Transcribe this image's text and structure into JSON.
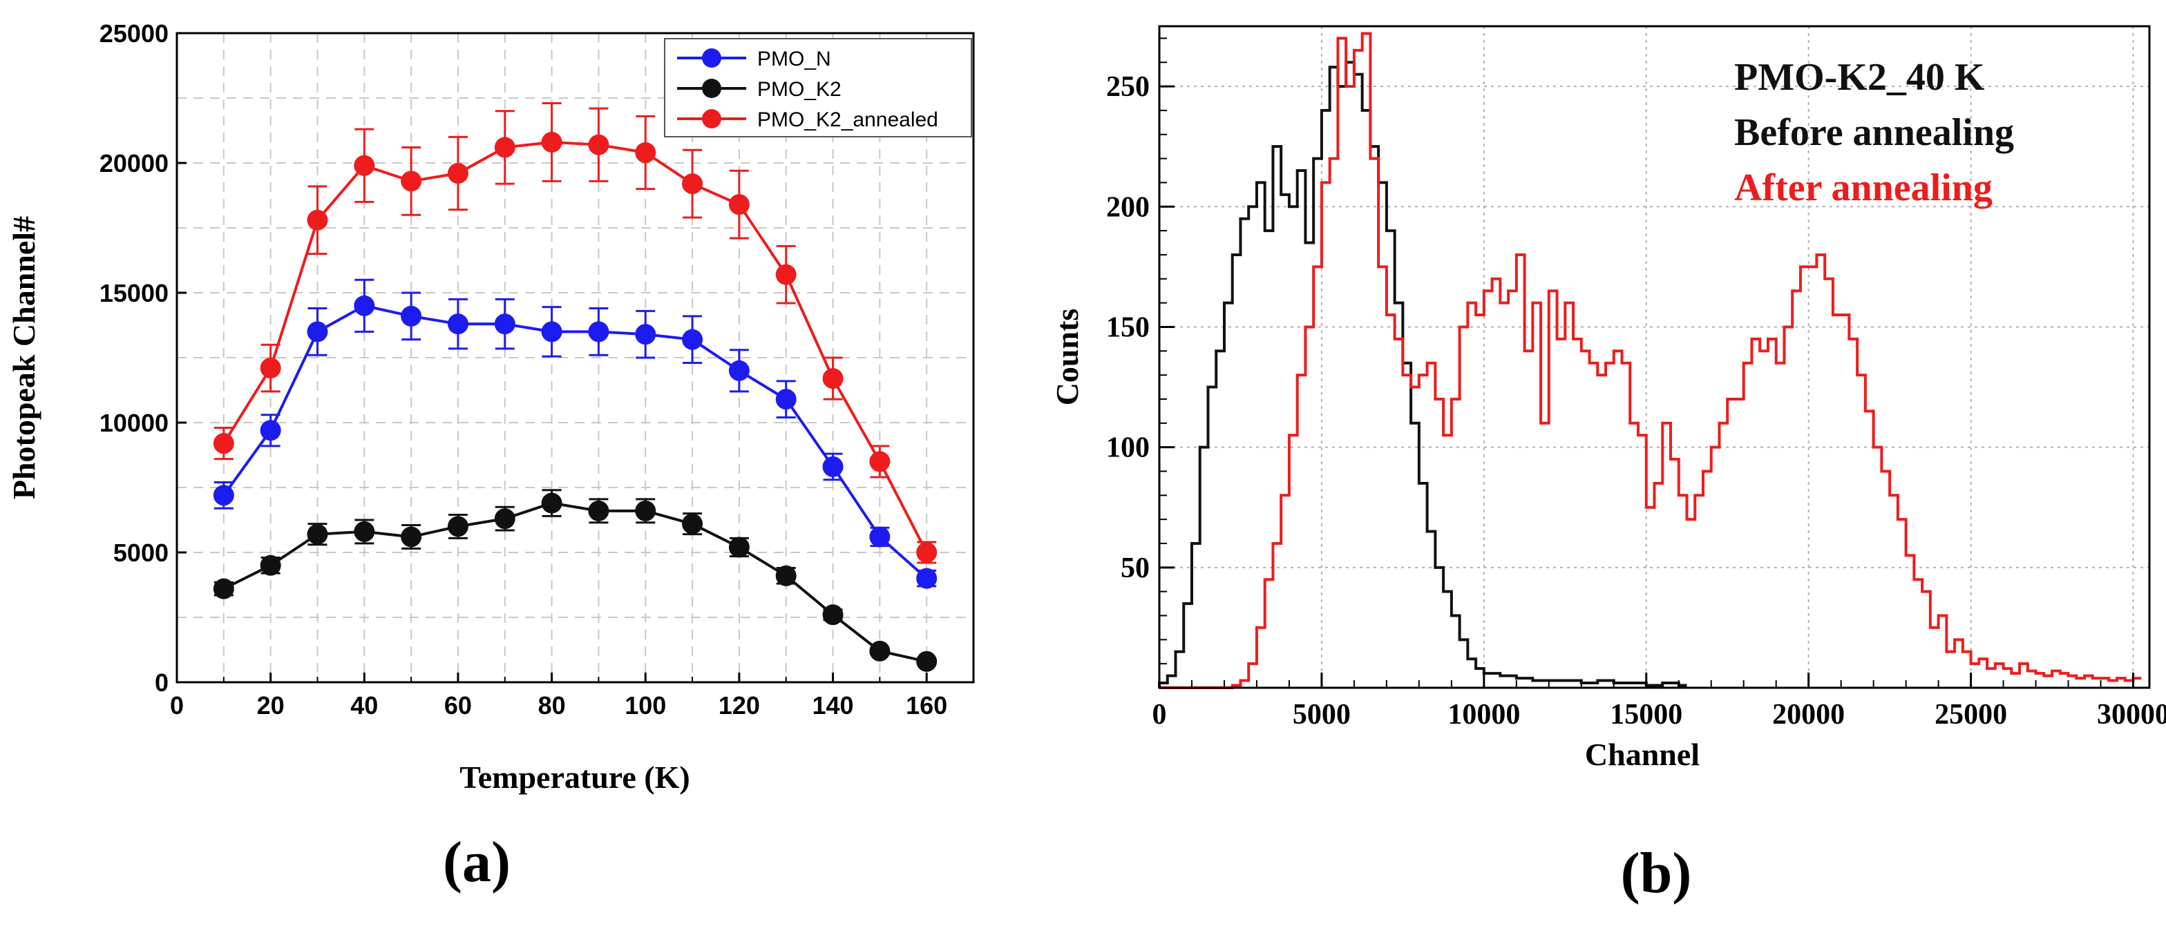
{
  "chart_data": [
    {
      "type": "line",
      "panel_label": "(a)",
      "xlabel": "Temperature (K)",
      "ylabel": "Photopeak Channel#",
      "xlim": [
        0,
        170
      ],
      "ylim": [
        0,
        25000
      ],
      "xticks": [
        0,
        20,
        40,
        60,
        80,
        100,
        120,
        140,
        160
      ],
      "yticks": [
        0,
        5000,
        10000,
        15000,
        20000,
        25000
      ],
      "grid": true,
      "legend": "top-right",
      "x": [
        10,
        20,
        30,
        40,
        50,
        60,
        70,
        80,
        90,
        100,
        110,
        120,
        130,
        140,
        150,
        160
      ],
      "series": [
        {
          "name": "PMO_N",
          "color": "#1c1cf0",
          "values": [
            7200,
            9700,
            13500,
            14500,
            14100,
            13800,
            13800,
            13500,
            13500,
            13400,
            13200,
            12000,
            10900,
            8300,
            5600,
            4000
          ],
          "errors": [
            500,
            600,
            900,
            1000,
            900,
            950,
            950,
            950,
            900,
            900,
            900,
            800,
            700,
            500,
            350,
            300
          ]
        },
        {
          "name": "PMO_K2",
          "color": "#111111",
          "values": [
            3600,
            4500,
            5700,
            5800,
            5600,
            6000,
            6300,
            6900,
            6600,
            6600,
            6100,
            5200,
            4100,
            2600,
            1200,
            800
          ],
          "errors": [
            250,
            300,
            400,
            450,
            450,
            450,
            450,
            500,
            450,
            450,
            400,
            350,
            300,
            200,
            120,
            100
          ]
        },
        {
          "name": "PMO_K2_annealed",
          "color": "#ee1c1c",
          "values": [
            9200,
            12100,
            17800,
            19900,
            19300,
            19600,
            20600,
            20800,
            20700,
            20400,
            19200,
            18400,
            15700,
            11700,
            8500,
            5000
          ],
          "errors": [
            600,
            900,
            1300,
            1400,
            1300,
            1400,
            1400,
            1500,
            1400,
            1400,
            1300,
            1300,
            1100,
            800,
            600,
            400
          ]
        }
      ]
    },
    {
      "type": "histogram",
      "panel_label": "(b)",
      "xlabel": "Channel",
      "ylabel": "Counts",
      "xlim": [
        0,
        30500
      ],
      "ylim": [
        0,
        275
      ],
      "xticks": [
        0,
        5000,
        10000,
        15000,
        20000,
        25000,
        30000
      ],
      "yticks": [
        50,
        100,
        150,
        200,
        250
      ],
      "grid": true,
      "annotations": [
        {
          "text": "PMO-K2_40 K",
          "color": "#111111"
        },
        {
          "text": "Before annealing",
          "color": "#111111"
        },
        {
          "text": "After annealing",
          "color": "#ee1c1c"
        }
      ],
      "series": [
        {
          "name": "Before annealing",
          "color": "#111111",
          "bin_width": 250,
          "x": [
            0,
            250,
            500,
            750,
            1000,
            1250,
            1500,
            1750,
            2000,
            2250,
            2500,
            2750,
            3000,
            3250,
            3500,
            3750,
            4000,
            4250,
            4500,
            4750,
            5000,
            5250,
            5500,
            5750,
            6000,
            6250,
            6500,
            6750,
            7000,
            7250,
            7500,
            7750,
            8000,
            8250,
            8500,
            8750,
            9000,
            9250,
            9500,
            9750,
            10000,
            10500,
            11000,
            11500,
            12000,
            12500,
            13000,
            13500,
            14000,
            14500,
            15000,
            15500,
            16000
          ],
          "values": [
            2,
            5,
            15,
            35,
            60,
            100,
            125,
            140,
            160,
            180,
            195,
            200,
            210,
            190,
            225,
            205,
            200,
            215,
            185,
            220,
            240,
            258,
            250,
            260,
            255,
            240,
            225,
            210,
            190,
            160,
            135,
            110,
            85,
            65,
            50,
            40,
            30,
            20,
            12,
            8,
            6,
            5,
            4,
            3,
            3,
            3,
            2,
            3,
            2,
            2,
            1,
            2,
            1
          ]
        },
        {
          "name": "After annealing",
          "color": "#ee1c1c",
          "bin_width": 250,
          "x": [
            0,
            250,
            500,
            750,
            1000,
            1250,
            1500,
            1750,
            2000,
            2250,
            2500,
            2750,
            3000,
            3250,
            3500,
            3750,
            4000,
            4250,
            4500,
            4750,
            5000,
            5250,
            5500,
            5750,
            6000,
            6250,
            6500,
            6750,
            7000,
            7250,
            7500,
            7750,
            8000,
            8250,
            8500,
            8750,
            9000,
            9250,
            9500,
            9750,
            10000,
            10250,
            10500,
            10750,
            11000,
            11250,
            11500,
            11750,
            12000,
            12250,
            12500,
            12750,
            13000,
            13250,
            13500,
            13750,
            14000,
            14250,
            14500,
            14750,
            15000,
            15250,
            15500,
            15750,
            16000,
            16250,
            16500,
            16750,
            17000,
            17250,
            17500,
            17750,
            18000,
            18250,
            18500,
            18750,
            19000,
            19250,
            19500,
            19750,
            20000,
            20250,
            20500,
            20750,
            21000,
            21250,
            21500,
            21750,
            22000,
            22250,
            22500,
            22750,
            23000,
            23250,
            23500,
            23750,
            24000,
            24250,
            24500,
            24750,
            25000,
            25250,
            25500,
            25750,
            26000,
            26250,
            26500,
            26750,
            27000,
            27250,
            27500,
            27750,
            28000,
            28250,
            28500,
            28750,
            29000,
            29250,
            29500,
            29750,
            30000
          ],
          "values": [
            0,
            0,
            0,
            0,
            0,
            0,
            0,
            0,
            0,
            1,
            3,
            10,
            25,
            45,
            60,
            80,
            105,
            130,
            150,
            175,
            210,
            220,
            270,
            250,
            265,
            272,
            220,
            175,
            155,
            145,
            130,
            125,
            130,
            135,
            120,
            105,
            120,
            150,
            160,
            155,
            165,
            170,
            160,
            165,
            180,
            140,
            160,
            110,
            165,
            145,
            160,
            145,
            140,
            135,
            130,
            135,
            140,
            135,
            110,
            105,
            75,
            85,
            110,
            95,
            80,
            70,
            80,
            90,
            100,
            110,
            120,
            120,
            135,
            145,
            140,
            145,
            135,
            150,
            165,
            175,
            175,
            180,
            170,
            155,
            155,
            145,
            130,
            115,
            100,
            90,
            80,
            70,
            55,
            45,
            40,
            25,
            30,
            15,
            20,
            15,
            10,
            12,
            8,
            10,
            8,
            6,
            10,
            7,
            6,
            5,
            7,
            6,
            5,
            4,
            5,
            4,
            4,
            3,
            4,
            3,
            4
          ]
        }
      ]
    }
  ]
}
